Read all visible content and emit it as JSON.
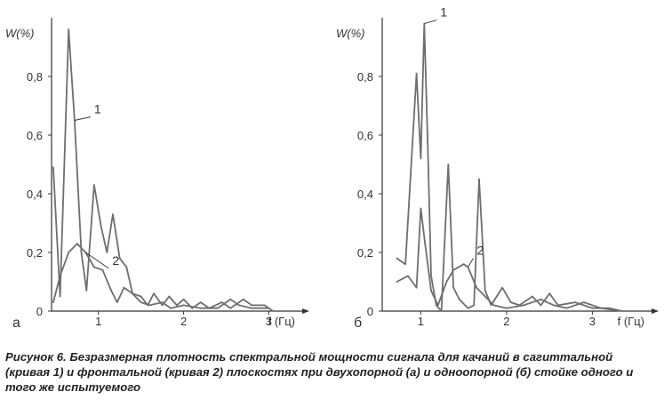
{
  "chart_data": [
    {
      "type": "line",
      "panel_label": "а",
      "ylabel": "W(%)",
      "xlabel": "f (Гц)",
      "xlim": [
        0.45,
        3.1
      ],
      "ylim": [
        0,
        1.0
      ],
      "x_ticks": [
        {
          "value": 1,
          "label": "1"
        },
        {
          "value": 2,
          "label": "2"
        },
        {
          "value": 3,
          "label": "3"
        }
      ],
      "y_ticks": [
        {
          "value": 0,
          "label": "0"
        },
        {
          "value": 0.2,
          "label": "0,2"
        },
        {
          "value": 0.4,
          "label": "0,4"
        },
        {
          "value": 0.6,
          "label": "0,6"
        },
        {
          "value": 0.8,
          "label": "0,8"
        }
      ],
      "series": [
        {
          "name": "1",
          "points": [
            [
              0.47,
              0.49
            ],
            [
              0.55,
              0.05
            ],
            [
              0.65,
              0.96
            ],
            [
              0.72,
              0.65
            ],
            [
              0.8,
              0.2
            ],
            [
              0.86,
              0.07
            ],
            [
              0.95,
              0.43
            ],
            [
              1.03,
              0.29
            ],
            [
              1.1,
              0.2
            ],
            [
              1.17,
              0.33
            ],
            [
              1.25,
              0.18
            ],
            [
              1.33,
              0.15
            ],
            [
              1.4,
              0.06
            ],
            [
              1.5,
              0.05
            ],
            [
              1.58,
              0.02
            ],
            [
              1.65,
              0.06
            ],
            [
              1.75,
              0.02
            ],
            [
              1.83,
              0.05
            ],
            [
              1.92,
              0.02
            ],
            [
              2.0,
              0.04
            ],
            [
              2.1,
              0.01
            ],
            [
              2.2,
              0.03
            ],
            [
              2.3,
              0.01
            ],
            [
              2.45,
              0.03
            ],
            [
              2.55,
              0.01
            ],
            [
              2.7,
              0.04
            ],
            [
              2.8,
              0.02
            ],
            [
              2.95,
              0.02
            ],
            [
              3.05,
              0.0
            ]
          ]
        },
        {
          "name": "2",
          "points": [
            [
              0.47,
              0.03
            ],
            [
              0.55,
              0.12
            ],
            [
              0.65,
              0.2
            ],
            [
              0.75,
              0.23
            ],
            [
              0.85,
              0.2
            ],
            [
              0.95,
              0.15
            ],
            [
              1.05,
              0.14
            ],
            [
              1.15,
              0.07
            ],
            [
              1.22,
              0.03
            ],
            [
              1.3,
              0.08
            ],
            [
              1.4,
              0.06
            ],
            [
              1.5,
              0.03
            ],
            [
              1.6,
              0.02
            ],
            [
              1.75,
              0.03
            ],
            [
              1.85,
              0.01
            ],
            [
              2.0,
              0.02
            ],
            [
              2.2,
              0.01
            ],
            [
              2.4,
              0.01
            ],
            [
              2.55,
              0.04
            ],
            [
              2.65,
              0.02
            ],
            [
              2.8,
              0.01
            ],
            [
              3.0,
              0.01
            ]
          ]
        }
      ],
      "annotations": [
        {
          "text": "1",
          "series": "1"
        },
        {
          "text": "2",
          "series": "2"
        }
      ]
    },
    {
      "type": "line",
      "panel_label": "б",
      "ylabel": "W(%)",
      "xlabel": "f (Гц)",
      "xlim": [
        0.55,
        3.4
      ],
      "ylim": [
        0,
        1.0
      ],
      "x_ticks": [
        {
          "value": 1,
          "label": "1"
        },
        {
          "value": 2,
          "label": "2"
        },
        {
          "value": 3,
          "label": "3"
        }
      ],
      "y_ticks": [
        {
          "value": 0,
          "label": "0"
        },
        {
          "value": 0.2,
          "label": "0,2"
        },
        {
          "value": 0.4,
          "label": "0,4"
        },
        {
          "value": 0.6,
          "label": "0,6"
        },
        {
          "value": 0.8,
          "label": "0,8"
        }
      ],
      "series": [
        {
          "name": "1",
          "points": [
            [
              0.72,
              0.18
            ],
            [
              0.82,
              0.16
            ],
            [
              0.95,
              0.81
            ],
            [
              1.0,
              0.52
            ],
            [
              1.04,
              0.98
            ],
            [
              1.08,
              0.58
            ],
            [
              1.12,
              0.12
            ],
            [
              1.18,
              0.02
            ],
            [
              1.24,
              0.0
            ],
            [
              1.32,
              0.5
            ],
            [
              1.38,
              0.08
            ],
            [
              1.45,
              0.04
            ],
            [
              1.55,
              0.01
            ],
            [
              1.62,
              0.02
            ],
            [
              1.68,
              0.45
            ],
            [
              1.75,
              0.07
            ],
            [
              1.82,
              0.02
            ],
            [
              1.95,
              0.08
            ],
            [
              2.05,
              0.03
            ],
            [
              2.15,
              0.02
            ],
            [
              2.3,
              0.05
            ],
            [
              2.4,
              0.02
            ],
            [
              2.5,
              0.06
            ],
            [
              2.6,
              0.02
            ],
            [
              2.8,
              0.03
            ],
            [
              3.0,
              0.01
            ],
            [
              3.2,
              0.01
            ],
            [
              3.35,
              0.0
            ]
          ]
        },
        {
          "name": "2",
          "points": [
            [
              0.72,
              0.1
            ],
            [
              0.85,
              0.12
            ],
            [
              0.95,
              0.08
            ],
            [
              1.0,
              0.35
            ],
            [
              1.05,
              0.23
            ],
            [
              1.12,
              0.07
            ],
            [
              1.2,
              0.02
            ],
            [
              1.3,
              0.1
            ],
            [
              1.38,
              0.14
            ],
            [
              1.5,
              0.16
            ],
            [
              1.55,
              0.15
            ],
            [
              1.65,
              0.08
            ],
            [
              1.75,
              0.05
            ],
            [
              1.85,
              0.02
            ],
            [
              2.0,
              0.01
            ],
            [
              2.2,
              0.02
            ],
            [
              2.4,
              0.04
            ],
            [
              2.55,
              0.02
            ],
            [
              2.7,
              0.01
            ],
            [
              2.9,
              0.03
            ],
            [
              3.1,
              0.01
            ],
            [
              3.35,
              0.0
            ]
          ]
        }
      ],
      "annotations": [
        {
          "text": "1",
          "series": "1"
        },
        {
          "text": "2",
          "series": "2"
        }
      ]
    }
  ],
  "caption": "Рисунок 6. Безразмерная плотность спектральной мощности сигнала для качаний в сагиттальной (кривая 1) и фронтальной (кривая 2) плоскостях при двухопорной (а) и одноопорной (б) стойке одного и того же испытуемого",
  "colors": {
    "axis": "#333333",
    "curve": "#6e6e6e"
  }
}
